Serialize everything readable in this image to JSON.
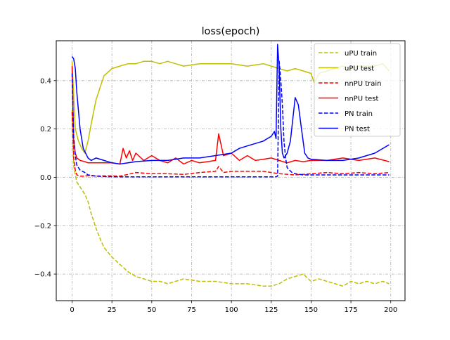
{
  "chart_data": {
    "type": "line",
    "title": "loss(epoch)",
    "xlabel": "",
    "ylabel": "",
    "xlim": [
      -9.95,
      208.95
    ],
    "ylim": [
      -0.51,
      0.565
    ],
    "xticks": [
      0,
      25,
      50,
      75,
      100,
      125,
      150,
      175,
      200
    ],
    "xtick_labels": [
      "0",
      "25",
      "50",
      "75",
      "100",
      "125",
      "150",
      "175",
      "200"
    ],
    "yticks": [
      -0.4,
      -0.2,
      0.0,
      0.2,
      0.4
    ],
    "ytick_labels": [
      "−0.4",
      "−0.2",
      "0.0",
      "0.2",
      "0.4"
    ],
    "grid": true,
    "legend_position": "top-right",
    "series": [
      {
        "name": "uPU train",
        "color": "#bfbf00",
        "dash": true,
        "x": [
          0,
          1,
          2,
          3,
          5,
          8,
          10,
          12,
          15,
          18,
          20,
          25,
          30,
          35,
          40,
          45,
          50,
          55,
          60,
          70,
          80,
          90,
          100,
          110,
          120,
          125,
          130,
          135,
          140,
          145,
          150,
          155,
          160,
          165,
          170,
          175,
          180,
          185,
          190,
          195,
          199
        ],
        "y": [
          0.28,
          0.05,
          0.01,
          -0.02,
          -0.04,
          -0.07,
          -0.1,
          -0.15,
          -0.21,
          -0.26,
          -0.29,
          -0.33,
          -0.36,
          -0.39,
          -0.41,
          -0.42,
          -0.43,
          -0.43,
          -0.44,
          -0.42,
          -0.43,
          -0.43,
          -0.44,
          -0.44,
          -0.45,
          -0.45,
          -0.44,
          -0.42,
          -0.41,
          -0.4,
          -0.43,
          -0.42,
          -0.43,
          -0.44,
          -0.45,
          -0.43,
          -0.44,
          -0.43,
          -0.44,
          -0.43,
          -0.44
        ]
      },
      {
        "name": "uPU test",
        "color": "#bfbf00",
        "dash": false,
        "x": [
          0,
          2,
          4,
          6,
          8,
          10,
          12,
          15,
          18,
          20,
          25,
          30,
          35,
          40,
          45,
          50,
          55,
          60,
          70,
          80,
          90,
          100,
          110,
          120,
          125,
          130,
          135,
          140,
          145,
          150,
          152,
          155,
          160,
          165,
          170,
          175,
          180,
          185,
          190,
          195,
          199
        ],
        "y": [
          0.48,
          0.2,
          0.15,
          0.12,
          0.1,
          0.15,
          0.22,
          0.32,
          0.38,
          0.42,
          0.45,
          0.46,
          0.47,
          0.47,
          0.48,
          0.48,
          0.47,
          0.48,
          0.46,
          0.47,
          0.47,
          0.47,
          0.46,
          0.47,
          0.46,
          0.45,
          0.44,
          0.45,
          0.44,
          0.43,
          0.39,
          0.43,
          0.44,
          0.45,
          0.46,
          0.45,
          0.46,
          0.46,
          0.46,
          0.47,
          0.44
        ]
      },
      {
        "name": "nnPU train",
        "color": "#ff0000",
        "dash": true,
        "x": [
          0,
          1,
          2,
          3,
          5,
          8,
          10,
          15,
          20,
          25,
          30,
          35,
          40,
          50,
          60,
          70,
          80,
          90,
          92,
          95,
          100,
          110,
          120,
          125,
          130,
          140,
          150,
          160,
          170,
          180,
          190,
          199
        ],
        "y": [
          0.27,
          0.08,
          0.03,
          0.01,
          0.005,
          0.005,
          0.008,
          0.005,
          0.006,
          0.006,
          0.005,
          0.012,
          0.02,
          0.015,
          0.015,
          0.012,
          0.02,
          0.025,
          0.045,
          0.02,
          0.025,
          0.025,
          0.025,
          0.02,
          0.015,
          0.01,
          0.015,
          0.02,
          0.015,
          0.02,
          0.015,
          0.02
        ]
      },
      {
        "name": "nnPU test",
        "color": "#ff0000",
        "dash": false,
        "x": [
          0,
          1,
          2,
          3,
          5,
          8,
          10,
          15,
          20,
          25,
          30,
          32,
          34,
          36,
          38,
          40,
          45,
          50,
          55,
          60,
          65,
          70,
          75,
          80,
          85,
          90,
          92,
          95,
          100,
          105,
          110,
          115,
          120,
          125,
          130,
          135,
          140,
          145,
          150,
          160,
          170,
          180,
          190,
          199
        ],
        "y": [
          0.46,
          0.15,
          0.1,
          0.08,
          0.07,
          0.065,
          0.06,
          0.06,
          0.06,
          0.06,
          0.055,
          0.12,
          0.08,
          0.11,
          0.07,
          0.1,
          0.07,
          0.09,
          0.07,
          0.06,
          0.08,
          0.055,
          0.07,
          0.06,
          0.065,
          0.07,
          0.18,
          0.09,
          0.1,
          0.07,
          0.09,
          0.07,
          0.075,
          0.08,
          0.07,
          0.06,
          0.07,
          0.065,
          0.07,
          0.07,
          0.08,
          0.07,
          0.08,
          0.065
        ]
      },
      {
        "name": "PN train",
        "color": "#0000ff",
        "dash": true,
        "x": [
          0,
          1,
          2,
          3,
          5,
          8,
          10,
          15,
          20,
          30,
          40,
          60,
          80,
          100,
          110,
          120,
          128,
          129,
          130,
          131,
          132,
          133,
          134,
          135,
          138,
          140,
          145,
          150,
          160,
          170,
          180,
          190,
          199
        ],
        "y": [
          0.43,
          0.17,
          0.09,
          0.05,
          0.03,
          0.02,
          0.01,
          0.005,
          0.003,
          0.002,
          0.002,
          0.002,
          0.002,
          0.002,
          0.002,
          0.002,
          0.002,
          0.005,
          0.48,
          0.4,
          0.3,
          0.15,
          0.08,
          0.04,
          0.02,
          0.015,
          0.01,
          0.01,
          0.01,
          0.01,
          0.01,
          0.01,
          0.01
        ]
      },
      {
        "name": "PN test",
        "color": "#0000ff",
        "dash": false,
        "x": [
          0,
          1,
          2,
          3,
          5,
          7,
          10,
          12,
          15,
          20,
          25,
          30,
          40,
          50,
          60,
          70,
          80,
          90,
          100,
          105,
          110,
          115,
          120,
          125,
          127,
          128,
          129,
          130,
          131,
          132,
          133,
          134,
          135,
          137,
          140,
          142,
          144,
          146,
          148,
          150,
          160,
          170,
          180,
          190,
          199
        ],
        "y": [
          0.5,
          0.49,
          0.45,
          0.35,
          0.2,
          0.12,
          0.08,
          0.07,
          0.08,
          0.07,
          0.06,
          0.055,
          0.065,
          0.07,
          0.07,
          0.08,
          0.08,
          0.09,
          0.1,
          0.12,
          0.13,
          0.14,
          0.15,
          0.17,
          0.19,
          0.16,
          0.55,
          0.45,
          0.2,
          0.1,
          0.08,
          0.09,
          0.1,
          0.15,
          0.33,
          0.3,
          0.2,
          0.1,
          0.08,
          0.075,
          0.07,
          0.07,
          0.08,
          0.1,
          0.135
        ]
      }
    ]
  }
}
